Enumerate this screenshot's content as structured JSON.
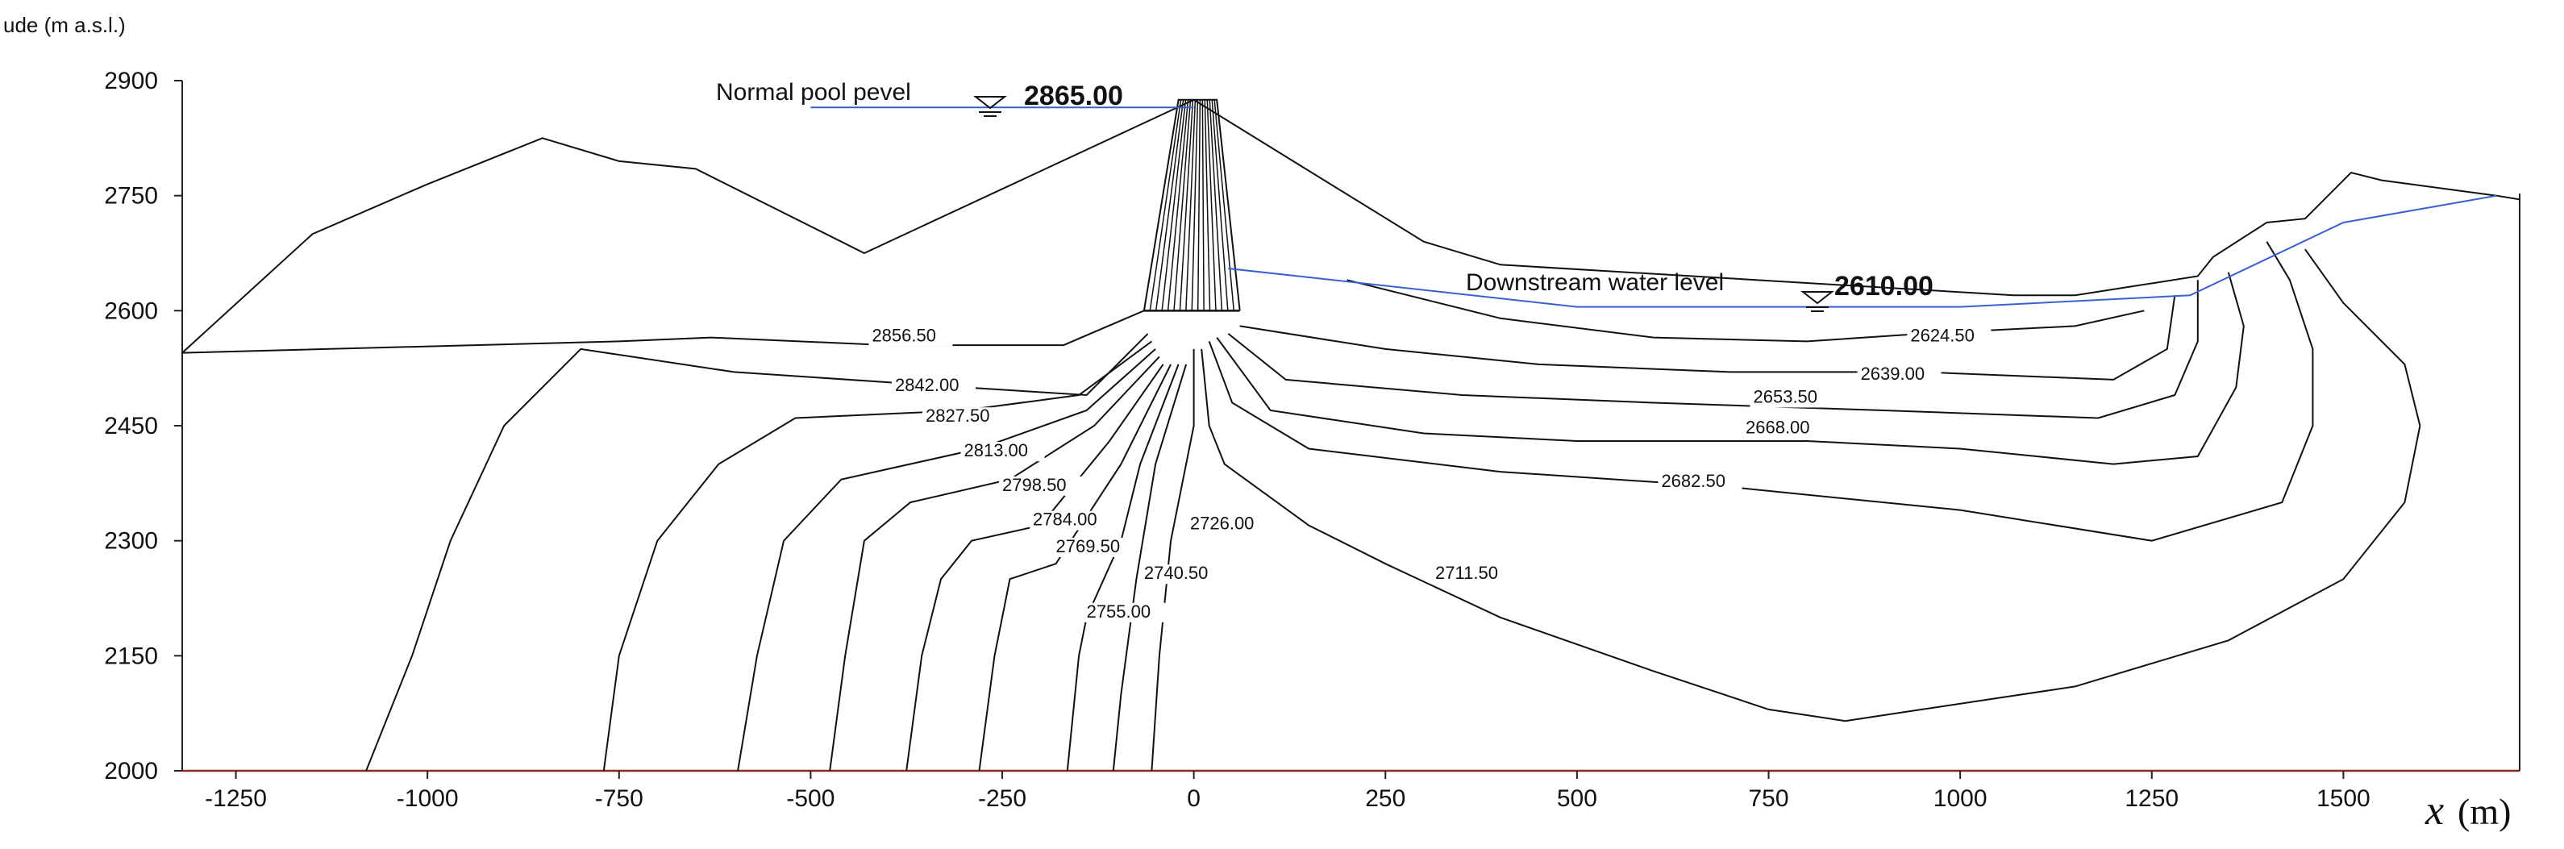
{
  "chart_data": {
    "type": "contour",
    "ylabel": "ude (m a.s.l.)",
    "xlabel_var": "x",
    "xlabel_unit": "(m)",
    "xlim": [
      -1320,
      1730
    ],
    "ylim": [
      2000,
      2900
    ],
    "x_ticks": [
      -1250,
      -1000,
      -750,
      -500,
      -250,
      0,
      250,
      500,
      750,
      1000,
      1250,
      1500
    ],
    "y_ticks": [
      2000,
      2150,
      2300,
      2450,
      2600,
      2750,
      2900
    ],
    "grid": false,
    "annotations": {
      "normal_pool_label": "Normal pool pevel",
      "normal_pool_value": "2865.00",
      "downstream_label": "Downstream water level",
      "downstream_value": "2610.00"
    },
    "normal_pool_level": [
      [
        -500,
        2865
      ],
      [
        0,
        2865
      ]
    ],
    "downstream_water_level": [
      [
        45,
        2655
      ],
      [
        500,
        2605
      ],
      [
        1000,
        2605
      ],
      [
        1300,
        2620
      ],
      [
        1500,
        2715
      ],
      [
        1700,
        2750
      ]
    ],
    "terrain": [
      [
        -1320,
        2545
      ],
      [
        -1150,
        2700
      ],
      [
        -1000,
        2765
      ],
      [
        -850,
        2825
      ],
      [
        -750,
        2795
      ],
      [
        -650,
        2785
      ],
      [
        -430,
        2675
      ],
      [
        0,
        2875
      ],
      [
        300,
        2690
      ],
      [
        400,
        2660
      ],
      [
        1070,
        2620
      ],
      [
        1150,
        2620
      ],
      [
        1310,
        2645
      ],
      [
        1330,
        2670
      ],
      [
        1400,
        2715
      ],
      [
        1450,
        2720
      ],
      [
        1470,
        2740
      ],
      [
        1510,
        2780
      ],
      [
        1550,
        2770
      ],
      [
        1700,
        2750
      ],
      [
        1730,
        2745
      ]
    ],
    "dam_core": [
      [
        -65,
        2600
      ],
      [
        -20,
        2875
      ],
      [
        30,
        2875
      ],
      [
        60,
        2600
      ]
    ],
    "contours": [
      {
        "label": "2856.50",
        "label_at": [
          -420,
          2560
        ],
        "points": [
          [
            -1320,
            2545
          ],
          [
            -750,
            2560
          ],
          [
            -630,
            2565
          ],
          [
            -400,
            2555
          ],
          [
            -170,
            2555
          ],
          [
            -65,
            2600
          ]
        ]
      },
      {
        "label": "2842.00",
        "label_at": [
          -390,
          2495
        ],
        "points": [
          [
            -1080,
            2000
          ],
          [
            -1020,
            2150
          ],
          [
            -970,
            2300
          ],
          [
            -900,
            2450
          ],
          [
            -800,
            2550
          ],
          [
            -600,
            2520
          ],
          [
            -300,
            2500
          ],
          [
            -140,
            2490
          ],
          [
            -60,
            2570
          ]
        ]
      },
      {
        "label": "2827.50",
        "label_at": [
          -350,
          2455
        ],
        "points": [
          [
            -770,
            2000
          ],
          [
            -750,
            2150
          ],
          [
            -700,
            2300
          ],
          [
            -620,
            2400
          ],
          [
            -520,
            2460
          ],
          [
            -300,
            2470
          ],
          [
            -150,
            2490
          ],
          [
            -55,
            2560
          ]
        ]
      },
      {
        "label": "2813.00",
        "label_at": [
          -300,
          2410
        ],
        "points": [
          [
            -595,
            2000
          ],
          [
            -570,
            2150
          ],
          [
            -535,
            2300
          ],
          [
            -460,
            2380
          ],
          [
            -280,
            2420
          ],
          [
            -140,
            2470
          ],
          [
            -50,
            2550
          ]
        ]
      },
      {
        "label": "2798.50",
        "label_at": [
          -250,
          2365
        ],
        "points": [
          [
            -475,
            2000
          ],
          [
            -455,
            2150
          ],
          [
            -430,
            2300
          ],
          [
            -370,
            2350
          ],
          [
            -240,
            2380
          ],
          [
            -130,
            2450
          ],
          [
            -45,
            2540
          ]
        ]
      },
      {
        "label": "2784.00",
        "label_at": [
          -210,
          2320
        ],
        "points": [
          [
            -375,
            2000
          ],
          [
            -355,
            2150
          ],
          [
            -330,
            2250
          ],
          [
            -290,
            2300
          ],
          [
            -200,
            2320
          ],
          [
            -110,
            2430
          ],
          [
            -40,
            2530
          ]
        ]
      },
      {
        "label": "2769.50",
        "label_at": [
          -180,
          2285
        ],
        "points": [
          [
            -280,
            2000
          ],
          [
            -260,
            2150
          ],
          [
            -240,
            2250
          ],
          [
            -180,
            2270
          ],
          [
            -95,
            2400
          ],
          [
            -30,
            2530
          ]
        ]
      },
      {
        "label": "2755.00",
        "label_at": [
          -140,
          2200
        ],
        "points": [
          [
            -165,
            2000
          ],
          [
            -150,
            2150
          ],
          [
            -140,
            2200
          ],
          [
            -95,
            2300
          ],
          [
            -70,
            2400
          ],
          [
            -20,
            2530
          ]
        ]
      },
      {
        "label": "2740.50",
        "label_at": [
          -65,
          2250
        ],
        "points": [
          [
            -105,
            2000
          ],
          [
            -95,
            2100
          ],
          [
            -75,
            2250
          ],
          [
            -50,
            2400
          ],
          [
            -10,
            2530
          ]
        ]
      },
      {
        "label": "2726.00",
        "label_at": [
          -5,
          2315
        ],
        "points": [
          [
            -55,
            2000
          ],
          [
            -45,
            2150
          ],
          [
            -30,
            2300
          ],
          [
            0,
            2450
          ],
          [
            0,
            2550
          ]
        ]
      },
      {
        "label": "2711.50",
        "label_at": [
          315,
          2250
        ],
        "points": [
          [
            10,
            2550
          ],
          [
            20,
            2450
          ],
          [
            40,
            2400
          ],
          [
            150,
            2320
          ],
          [
            250,
            2270
          ],
          [
            400,
            2200
          ],
          [
            600,
            2130
          ],
          [
            750,
            2080
          ],
          [
            850,
            2065
          ],
          [
            950,
            2080
          ],
          [
            1150,
            2110
          ],
          [
            1350,
            2170
          ],
          [
            1500,
            2250
          ],
          [
            1580,
            2350
          ],
          [
            1600,
            2450
          ],
          [
            1580,
            2530
          ],
          [
            1500,
            2610
          ],
          [
            1450,
            2680
          ]
        ]
      },
      {
        "label": "2682.50",
        "label_at": [
          610,
          2370
        ],
        "points": [
          [
            20,
            2560
          ],
          [
            50,
            2480
          ],
          [
            150,
            2420
          ],
          [
            400,
            2390
          ],
          [
            700,
            2370
          ],
          [
            1000,
            2340
          ],
          [
            1250,
            2300
          ],
          [
            1420,
            2350
          ],
          [
            1460,
            2450
          ],
          [
            1460,
            2550
          ],
          [
            1430,
            2640
          ],
          [
            1400,
            2690
          ]
        ]
      },
      {
        "label": "2668.00",
        "label_at": [
          720,
          2440
        ],
        "points": [
          [
            30,
            2565
          ],
          [
            100,
            2470
          ],
          [
            300,
            2440
          ],
          [
            500,
            2430
          ],
          [
            800,
            2430
          ],
          [
            1000,
            2420
          ],
          [
            1200,
            2400
          ],
          [
            1310,
            2410
          ],
          [
            1360,
            2500
          ],
          [
            1370,
            2580
          ],
          [
            1350,
            2650
          ]
        ]
      },
      {
        "label": "2653.50",
        "label_at": [
          730,
          2480
        ],
        "points": [
          [
            45,
            2570
          ],
          [
            120,
            2510
          ],
          [
            350,
            2490
          ],
          [
            600,
            2480
          ],
          [
            900,
            2470
          ],
          [
            1180,
            2460
          ],
          [
            1280,
            2490
          ],
          [
            1310,
            2560
          ],
          [
            1310,
            2640
          ]
        ]
      },
      {
        "label": "2639.00",
        "label_at": [
          870,
          2510
        ],
        "points": [
          [
            60,
            2580
          ],
          [
            250,
            2550
          ],
          [
            450,
            2530
          ],
          [
            700,
            2520
          ],
          [
            950,
            2520
          ],
          [
            1200,
            2510
          ],
          [
            1270,
            2550
          ],
          [
            1280,
            2620
          ]
        ]
      },
      {
        "label": "2624.50",
        "label_at": [
          935,
          2560
        ],
        "points": [
          [
            200,
            2640
          ],
          [
            400,
            2590
          ],
          [
            600,
            2565
          ],
          [
            800,
            2560
          ],
          [
            950,
            2570
          ],
          [
            1150,
            2580
          ],
          [
            1240,
            2600
          ]
        ]
      }
    ]
  }
}
